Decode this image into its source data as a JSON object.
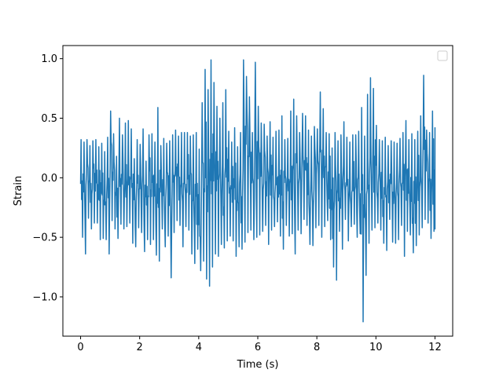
{
  "chart_data": {
    "type": "line",
    "title": "",
    "xlabel": "Time (s)",
    "ylabel": "Strain",
    "xlim": [
      -0.6,
      12.6
    ],
    "ylim": [
      -1.33,
      1.11
    ],
    "xticks": [
      0,
      2,
      4,
      6,
      8,
      10,
      12
    ],
    "xtick_labels": [
      "0",
      "2",
      "4",
      "6",
      "8",
      "10",
      "12"
    ],
    "yticks": [
      -1.0,
      -0.5,
      0.0,
      0.5,
      1.0
    ],
    "ytick_labels": [
      "−1.0",
      "−0.5",
      "0.0",
      "0.5",
      "1.0"
    ],
    "grid": false,
    "legend": {
      "placement": "upper-right",
      "entries": []
    },
    "series": [
      {
        "color": "#1f77b4",
        "x_start": 0,
        "x_end": 12,
        "x_step": 0.1,
        "envelope_max": [
          0.32,
          0.3,
          0.32,
          0.27,
          0.31,
          0.32,
          0.26,
          0.29,
          0.22,
          0.34,
          0.56,
          0.37,
          0.18,
          0.5,
          0.36,
          0.46,
          0.48,
          0.41,
          0.16,
          0.32,
          0.28,
          0.41,
          0.14,
          0.36,
          0.37,
          0.3,
          0.59,
          0.27,
          0.33,
          0.29,
          0.31,
          0.36,
          0.4,
          0.35,
          0.38,
          0.38,
          0.38,
          0.35,
          0.36,
          0.38,
          0.24,
          0.63,
          0.91,
          0.74,
          0.99,
          0.8,
          0.6,
          0.5,
          0.63,
          0.74,
          0.39,
          0.3,
          0.42,
          0.26,
          0.38,
          0.99,
          0.85,
          0.68,
          0.38,
          0.97,
          0.6,
          0.46,
          0.45,
          0.35,
          0.47,
          0.34,
          0.39,
          0.4,
          0.52,
          0.32,
          0.33,
          0.56,
          0.66,
          0.52,
          0.38,
          0.54,
          0.52,
          0.4,
          0.35,
          0.43,
          0.41,
          0.72,
          0.58,
          0.38,
          0.37,
          0.25,
          0.38,
          0.31,
          0.36,
          0.47,
          0.34,
          0.3,
          0.36,
          0.36,
          0.39,
          0.59,
          0.35,
          0.7,
          0.84,
          0.75,
          0.44,
          0.32,
          0.31,
          0.34,
          0.27,
          0.31,
          0.3,
          0.29,
          0.33,
          0.38,
          0.48,
          0.32,
          0.37,
          0.32,
          0.39,
          0.52,
          0.86,
          0.4,
          0.38,
          0.56,
          0.42
        ],
        "envelope_min": [
          -0.5,
          -0.64,
          -0.34,
          -0.43,
          -0.38,
          -0.38,
          -0.52,
          -0.51,
          -0.52,
          -0.64,
          -0.36,
          -0.43,
          -0.51,
          -0.39,
          -0.43,
          -0.41,
          -0.38,
          -0.55,
          -0.58,
          -0.42,
          -0.46,
          -0.62,
          -0.52,
          -0.56,
          -0.52,
          -0.65,
          -0.7,
          -0.43,
          -0.58,
          -0.49,
          -0.84,
          -0.46,
          -0.36,
          -0.4,
          -0.58,
          -0.41,
          -0.44,
          -0.64,
          -0.72,
          -0.6,
          -0.78,
          -0.7,
          -0.85,
          -0.91,
          -0.75,
          -0.64,
          -0.66,
          -0.56,
          -0.59,
          -0.53,
          -0.49,
          -0.53,
          -0.66,
          -0.58,
          -0.6,
          -0.54,
          -0.46,
          -0.44,
          -0.52,
          -0.5,
          -0.48,
          -0.45,
          -0.4,
          -0.56,
          -0.44,
          -0.41,
          -0.37,
          -0.49,
          -0.6,
          -0.4,
          -0.49,
          -0.47,
          -0.64,
          -0.44,
          -0.47,
          -0.35,
          -0.4,
          -0.56,
          -0.57,
          -0.42,
          -0.4,
          -0.5,
          -0.41,
          -0.36,
          -0.52,
          -0.75,
          -0.86,
          -0.45,
          -0.6,
          -0.35,
          -0.53,
          -0.41,
          -0.39,
          -0.5,
          -0.47,
          -1.21,
          -0.82,
          -0.55,
          -0.44,
          -0.42,
          -0.38,
          -0.44,
          -0.55,
          -0.61,
          -0.35,
          -0.54,
          -0.55,
          -0.52,
          -0.4,
          -0.66,
          -0.45,
          -0.48,
          -0.63,
          -0.57,
          -0.48,
          -0.42,
          -0.35,
          -0.38,
          -0.51,
          -0.45,
          -0.43
        ],
        "note": ""
      }
    ]
  }
}
